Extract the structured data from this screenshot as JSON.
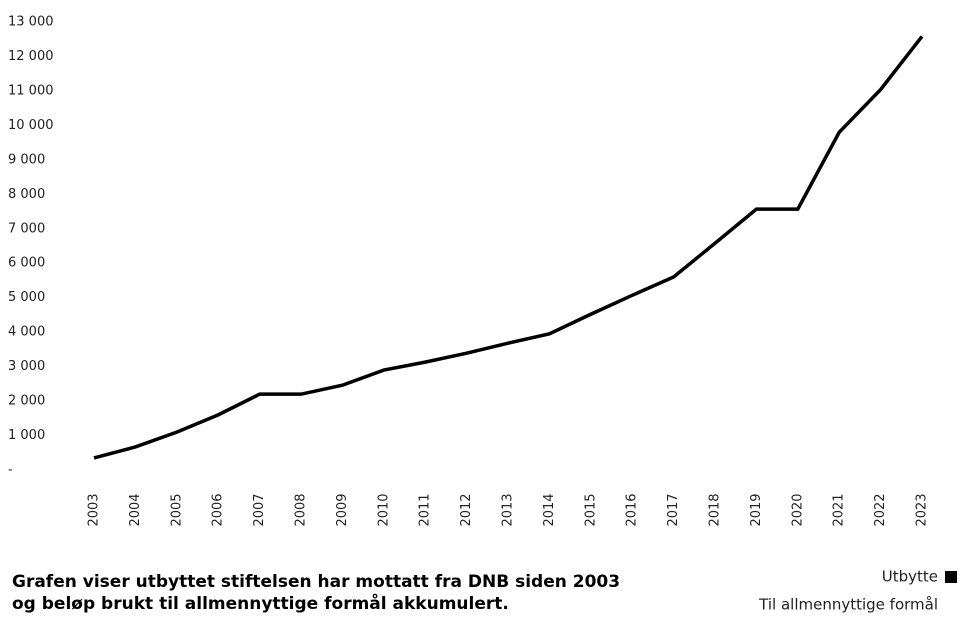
{
  "chart_data": {
    "type": "line",
    "categories": [
      "2003",
      "2004",
      "2005",
      "2006",
      "2007",
      "2008",
      "2009",
      "2010",
      "2011",
      "2012",
      "2013",
      "2014",
      "2015",
      "2016",
      "2017",
      "2018",
      "2019",
      "2020",
      "2021",
      "2022",
      "2023"
    ],
    "series": [
      {
        "name": "Utbytte",
        "color": "#000000",
        "values": [
          350,
          670,
          1100,
          1600,
          2200,
          2200,
          2460,
          2900,
          3130,
          3390,
          3680,
          3950,
          4520,
          5070,
          5600,
          6580,
          7570,
          7570,
          9800,
          11040,
          12580
        ]
      }
    ],
    "legend_note": "Til allmennyttige formål",
    "ylim": [
      0,
      13000
    ],
    "yticks": [
      {
        "value": 0,
        "label": "-"
      },
      {
        "value": 1000,
        "label": "1 000"
      },
      {
        "value": 2000,
        "label": "2 000"
      },
      {
        "value": 3000,
        "label": "3 000"
      },
      {
        "value": 4000,
        "label": "4 000"
      },
      {
        "value": 5000,
        "label": "5 000"
      },
      {
        "value": 6000,
        "label": "6 000"
      },
      {
        "value": 7000,
        "label": "7 000"
      },
      {
        "value": 8000,
        "label": "8 000"
      },
      {
        "value": 9000,
        "label": "9 000"
      },
      {
        "value": 10000,
        "label": "10 000"
      },
      {
        "value": 11000,
        "label": "11 000"
      },
      {
        "value": 12000,
        "label": "12 000"
      },
      {
        "value": 13000,
        "label": "13 000"
      }
    ],
    "caption": [
      "Grafen viser utbyttet stiftelsen har mottatt fra DNB siden 2003",
      "og beløp brukt til allmennyttige formål akkumulert."
    ]
  }
}
